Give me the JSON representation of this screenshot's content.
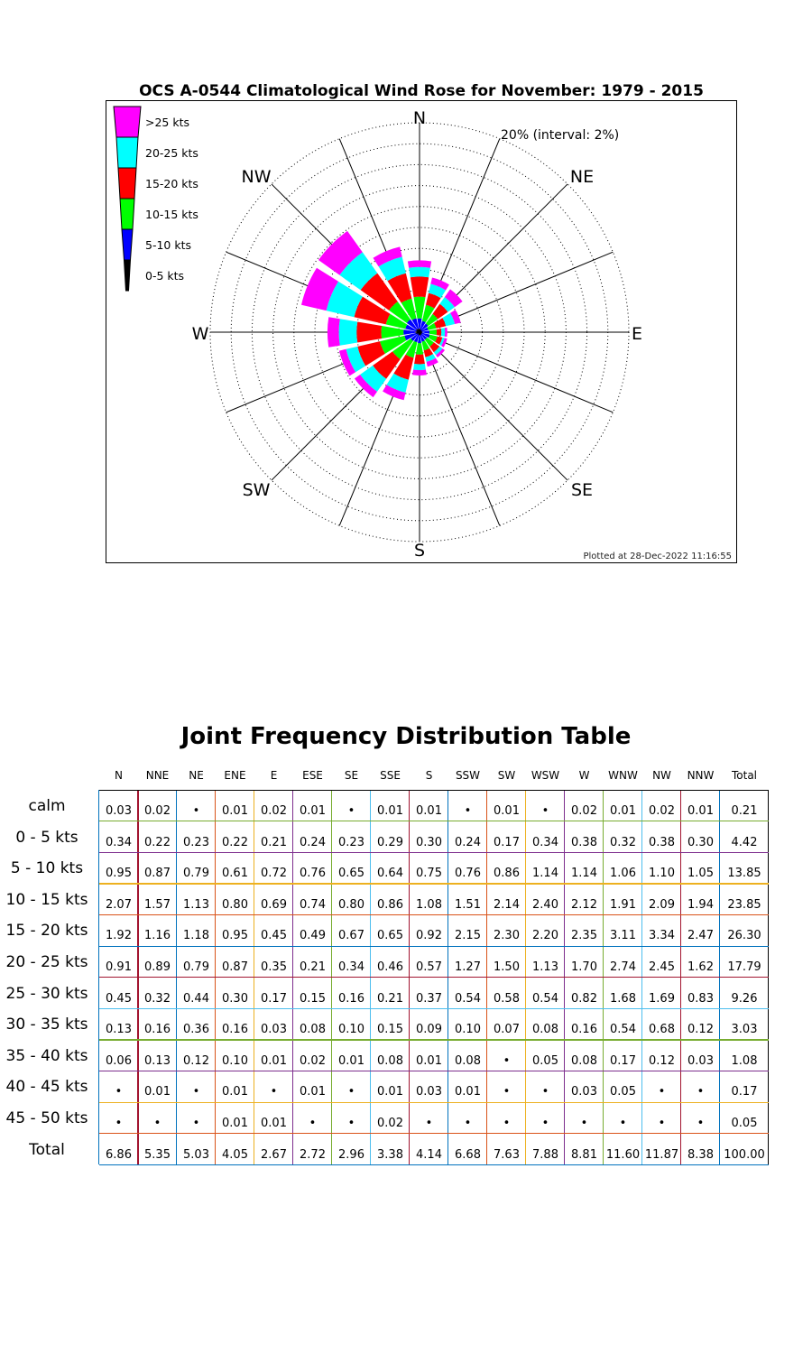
{
  "chart_data": [
    {
      "type": "windrose",
      "title": "OCS A-0544 Climatological Wind Rose for November: 1979 - 2015",
      "scale_label": "20% (interval: 2%)",
      "rmax_percent": 20,
      "ring_interval_percent": 2,
      "compass_labels": [
        "N",
        "NE",
        "E",
        "SE",
        "S",
        "SW",
        "W",
        "NW"
      ],
      "footer": "Plotted at 28-Dec-2022 11:16:55",
      "legend": [
        {
          "label": ">25 kts",
          "color": "#ff00ff"
        },
        {
          "label": "20-25 kts",
          "color": "#00ffff"
        },
        {
          "label": "15-20 kts",
          "color": "#ff0000"
        },
        {
          "label": "10-15 kts",
          "color": "#00ff00"
        },
        {
          "label": "5-10 kts",
          "color": "#0000ff"
        },
        {
          "label": "0-5 kts",
          "color": "#000000"
        }
      ]
    },
    {
      "type": "table",
      "title": "Joint Frequency Distribution Table",
      "columns": [
        "N",
        "NNE",
        "NE",
        "ENE",
        "E",
        "ESE",
        "SE",
        "SSE",
        "S",
        "SSW",
        "SW",
        "WSW",
        "W",
        "WNW",
        "NW",
        "NNW",
        "Total"
      ],
      "rows": [
        {
          "label": "calm",
          "values": [
            "0.03",
            "0.02",
            "•",
            "0.01",
            "0.02",
            "0.01",
            "•",
            "0.01",
            "0.01",
            "•",
            "0.01",
            "•",
            "0.02",
            "0.01",
            "0.02",
            "0.01",
            "0.21"
          ]
        },
        {
          "label": "0 - 5  kts",
          "values": [
            "0.34",
            "0.22",
            "0.23",
            "0.22",
            "0.21",
            "0.24",
            "0.23",
            "0.29",
            "0.30",
            "0.24",
            "0.17",
            "0.34",
            "0.38",
            "0.32",
            "0.38",
            "0.30",
            "4.42"
          ]
        },
        {
          "label": "5 - 10 kts",
          "values": [
            "0.95",
            "0.87",
            "0.79",
            "0.61",
            "0.72",
            "0.76",
            "0.65",
            "0.64",
            "0.75",
            "0.76",
            "0.86",
            "1.14",
            "1.14",
            "1.06",
            "1.10",
            "1.05",
            "13.85"
          ]
        },
        {
          "label": "10 - 15 kts",
          "values": [
            "2.07",
            "1.57",
            "1.13",
            "0.80",
            "0.69",
            "0.74",
            "0.80",
            "0.86",
            "1.08",
            "1.51",
            "2.14",
            "2.40",
            "2.12",
            "1.91",
            "2.09",
            "1.94",
            "23.85"
          ]
        },
        {
          "label": "15 - 20 kts",
          "values": [
            "1.92",
            "1.16",
            "1.18",
            "0.95",
            "0.45",
            "0.49",
            "0.67",
            "0.65",
            "0.92",
            "2.15",
            "2.30",
            "2.20",
            "2.35",
            "3.11",
            "3.34",
            "2.47",
            "26.30"
          ]
        },
        {
          "label": "20 - 25 kts",
          "values": [
            "0.91",
            "0.89",
            "0.79",
            "0.87",
            "0.35",
            "0.21",
            "0.34",
            "0.46",
            "0.57",
            "1.27",
            "1.50",
            "1.13",
            "1.70",
            "2.74",
            "2.45",
            "1.62",
            "17.79"
          ]
        },
        {
          "label": "25 - 30 kts",
          "values": [
            "0.45",
            "0.32",
            "0.44",
            "0.30",
            "0.17",
            "0.15",
            "0.16",
            "0.21",
            "0.37",
            "0.54",
            "0.58",
            "0.54",
            "0.82",
            "1.68",
            "1.69",
            "0.83",
            "9.26"
          ]
        },
        {
          "label": "30 - 35 kts",
          "values": [
            "0.13",
            "0.16",
            "0.36",
            "0.16",
            "0.03",
            "0.08",
            "0.10",
            "0.15",
            "0.09",
            "0.10",
            "0.07",
            "0.08",
            "0.16",
            "0.54",
            "0.68",
            "0.12",
            "3.03"
          ]
        },
        {
          "label": "35 - 40 kts",
          "values": [
            "0.06",
            "0.13",
            "0.12",
            "0.10",
            "0.01",
            "0.02",
            "0.01",
            "0.08",
            "0.01",
            "0.08",
            "•",
            "0.05",
            "0.08",
            "0.17",
            "0.12",
            "0.03",
            "1.08"
          ]
        },
        {
          "label": "40 - 45 kts",
          "values": [
            "•",
            "0.01",
            "•",
            "0.01",
            "•",
            "0.01",
            "•",
            "0.01",
            "0.03",
            "0.01",
            "•",
            "•",
            "0.03",
            "0.05",
            "•",
            "•",
            "0.17"
          ]
        },
        {
          "label": "45 - 50 kts",
          "values": [
            "•",
            "•",
            "•",
            "0.01",
            "0.01",
            "•",
            "•",
            "0.02",
            "•",
            "•",
            "•",
            "•",
            "•",
            "•",
            "•",
            "•",
            "0.05"
          ]
        },
        {
          "label": "Total",
          "values": [
            "6.86",
            "5.35",
            "5.03",
            "4.05",
            "2.67",
            "2.72",
            "2.96",
            "3.38",
            "4.14",
            "6.68",
            "7.63",
            "7.88",
            "8.81",
            "11.60",
            "11.87",
            "8.38",
            "100.00"
          ]
        }
      ]
    }
  ]
}
